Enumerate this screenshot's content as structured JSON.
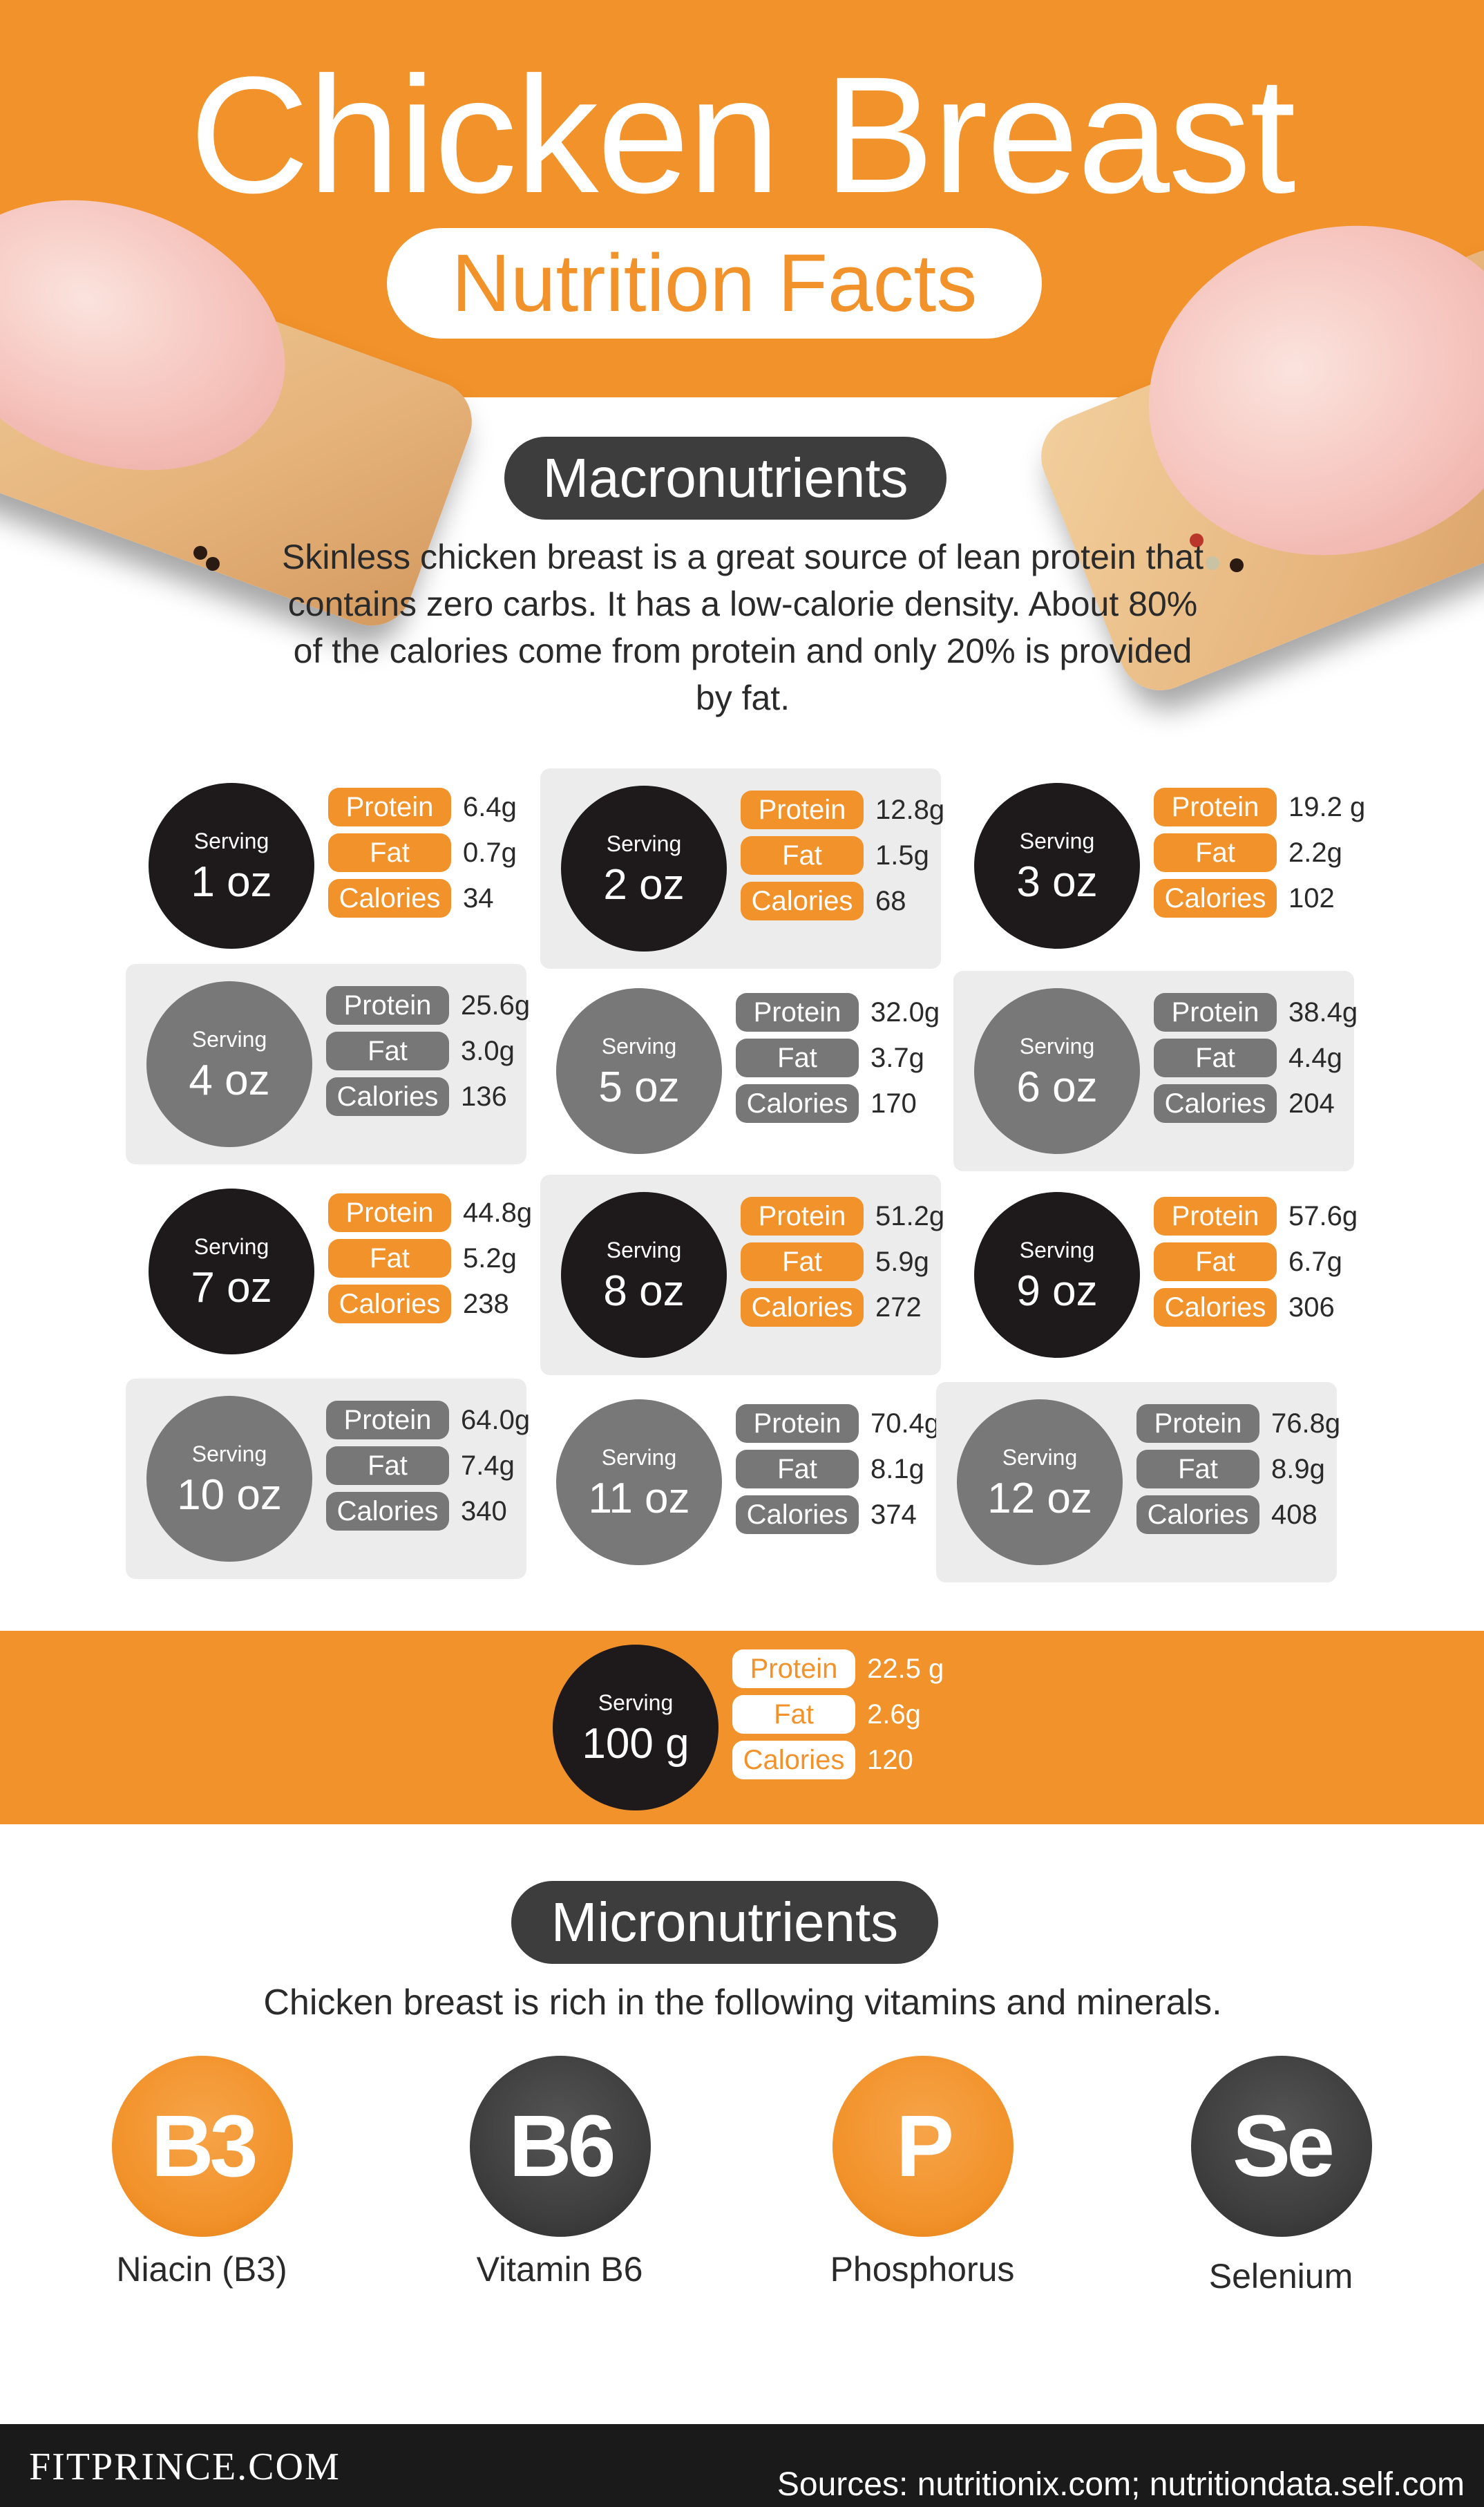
{
  "header": {
    "title": "Chicken Breast",
    "subtitle": "Nutrition Facts"
  },
  "macronutrients": {
    "heading": "Macronutrients",
    "description": "Skinless chicken breast is a great source of lean protein that contains zero carbs. It has a low-calorie density. About 80% of the calories come from protein and only 20% is provided by fat."
  },
  "labels": {
    "serving": "Serving",
    "protein": "Protein",
    "fat": "Fat",
    "calories": "Calories"
  },
  "servings": [
    {
      "size": "1 oz",
      "protein": "6.4g",
      "fat": "0.7g",
      "calories": "34"
    },
    {
      "size": "2 oz",
      "protein": "12.8g",
      "fat": "1.5g",
      "calories": "68"
    },
    {
      "size": "3 oz",
      "protein": "19.2 g",
      "fat": "2.2g",
      "calories": "102"
    },
    {
      "size": "4 oz",
      "protein": "25.6g",
      "fat": "3.0g",
      "calories": "136"
    },
    {
      "size": "5 oz",
      "protein": "32.0g",
      "fat": "3.7g",
      "calories": "170"
    },
    {
      "size": "6 oz",
      "protein": "38.4g",
      "fat": "4.4g",
      "calories": "204"
    },
    {
      "size": "7 oz",
      "protein": "44.8g",
      "fat": "5.2g",
      "calories": "238"
    },
    {
      "size": "8 oz",
      "protein": "51.2g",
      "fat": "5.9g",
      "calories": "272"
    },
    {
      "size": "9 oz",
      "protein": "57.6g",
      "fat": "6.7g",
      "calories": "306"
    },
    {
      "size": "10 oz",
      "protein": "64.0g",
      "fat": "7.4g",
      "calories": "340"
    },
    {
      "size": "11 oz",
      "protein": "70.4g",
      "fat": "8.1g",
      "calories": "374"
    },
    {
      "size": "12 oz",
      "protein": "76.8g",
      "fat": "8.9g",
      "calories": "408"
    }
  ],
  "serving_100g": {
    "size": "100 g",
    "protein": "22.5 g",
    "fat": "2.6g",
    "calories": "120"
  },
  "micronutrients": {
    "heading": "Micronutrients",
    "description": "Chicken breast is rich in the following vitamins and minerals.",
    "items": [
      {
        "symbol": "B3",
        "name": "Niacin (B3)",
        "color": "orange"
      },
      {
        "symbol": "B6",
        "name": "Vitamin B6",
        "color": "dark"
      },
      {
        "symbol": "P",
        "name": "Phosphorus",
        "color": "orange"
      },
      {
        "symbol": "Se",
        "name": "Selenium",
        "color": "dark"
      }
    ]
  },
  "footer": {
    "brand": "FITPRINCE.COM",
    "sources": "Sources: nutritionix.com; nutritiondata.self.com"
  },
  "colors": {
    "orange": "#f2922a",
    "dark": "#1e1a1b",
    "gray": "#787878",
    "card_bg": "#ececec"
  }
}
